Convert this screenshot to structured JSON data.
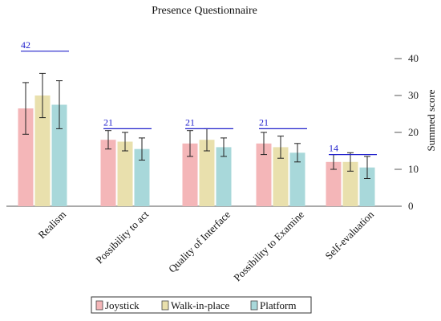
{
  "chart_data": {
    "type": "bar",
    "title": "Presence Questionnaire",
    "ylabel": "Summed score",
    "xlabel": "",
    "ylim": [
      0,
      40
    ],
    "yticks": [
      0,
      10,
      20,
      30,
      40
    ],
    "y_axis_side": "right",
    "categories": [
      "Realism",
      "Possibility to act",
      "Quality of Interface",
      "Possibility to Examine",
      "Self-evaluation"
    ],
    "series": [
      {
        "name": "Joystick",
        "color": "#f4b6b8",
        "values": [
          26.5,
          18,
          17,
          17,
          12
        ],
        "error": [
          7,
          2.5,
          3.5,
          3,
          2
        ]
      },
      {
        "name": "Walk-in-place",
        "color": "#e9e0ad",
        "values": [
          30,
          17.5,
          18,
          16,
          12
        ],
        "error": [
          6,
          2.5,
          3,
          3,
          2.5
        ]
      },
      {
        "name": "Platform",
        "color": "#a8d8da",
        "values": [
          27.5,
          15.5,
          16,
          14.5,
          10.5
        ],
        "error": [
          6.5,
          3,
          2.5,
          2.5,
          3
        ]
      }
    ],
    "max_scores": [
      42,
      21,
      21,
      21,
      14
    ],
    "max_line_color": "#2222cc",
    "legend_position": "bottom"
  }
}
